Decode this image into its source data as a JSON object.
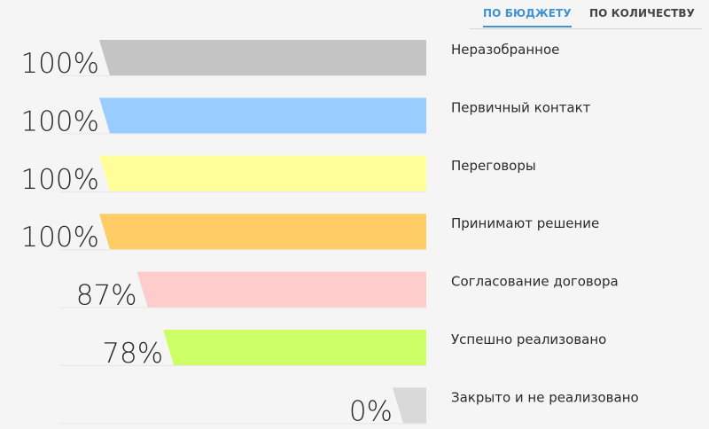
{
  "tabs": [
    {
      "label": "ПО БЮДЖЕТУ",
      "active": true
    },
    {
      "label": "ПО КОЛИЧЕСТВУ",
      "active": false
    }
  ],
  "chart_data": {
    "type": "bar",
    "orientation": "horizontal",
    "categories": [
      "Неразобранное",
      "Первичный контакт",
      "Переговоры",
      "Принимают решение",
      "Согласование договора",
      "Успешно реализовано",
      "Закрыто и не реализовано"
    ],
    "values": [
      100,
      100,
      100,
      100,
      87,
      78,
      0
    ],
    "value_labels": [
      "100%",
      "100%",
      "100%",
      "100%",
      "87%",
      "78%",
      "0%"
    ],
    "colors": [
      "#c4c4c4",
      "#99ccff",
      "#ffff99",
      "#ffcc66",
      "#ffcccc",
      "#ccff66",
      "#d8d8d8"
    ],
    "xlim": [
      0,
      100
    ],
    "title": "",
    "xlabel": "",
    "ylabel": ""
  }
}
